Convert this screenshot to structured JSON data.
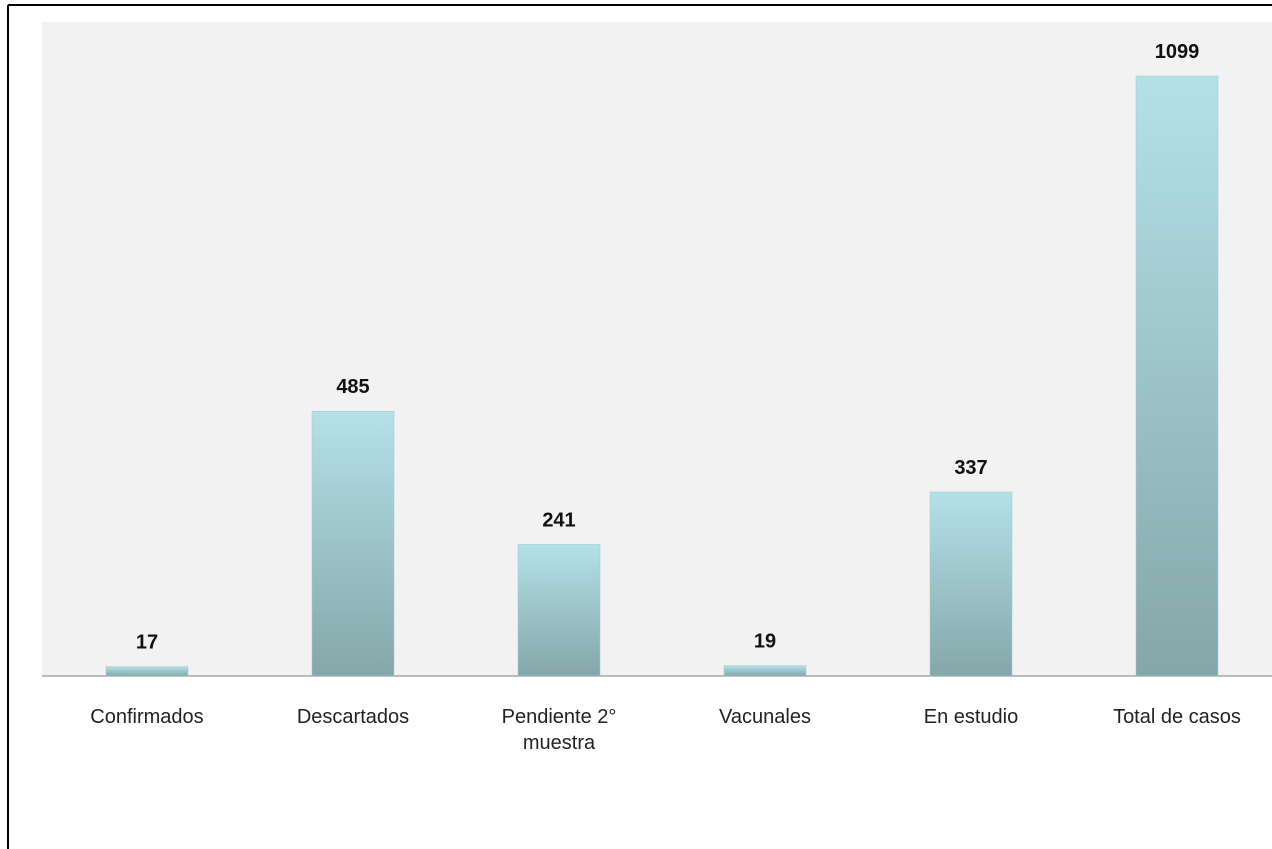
{
  "chart_data": {
    "type": "bar",
    "categories": [
      "Confirmados",
      "Descartados",
      "Pendiente 2° muestra",
      "Vacunales",
      "En estudio",
      "Total de casos"
    ],
    "values": [
      17,
      485,
      241,
      19,
      337,
      1099
    ],
    "color": "#9fcbd0"
  }
}
